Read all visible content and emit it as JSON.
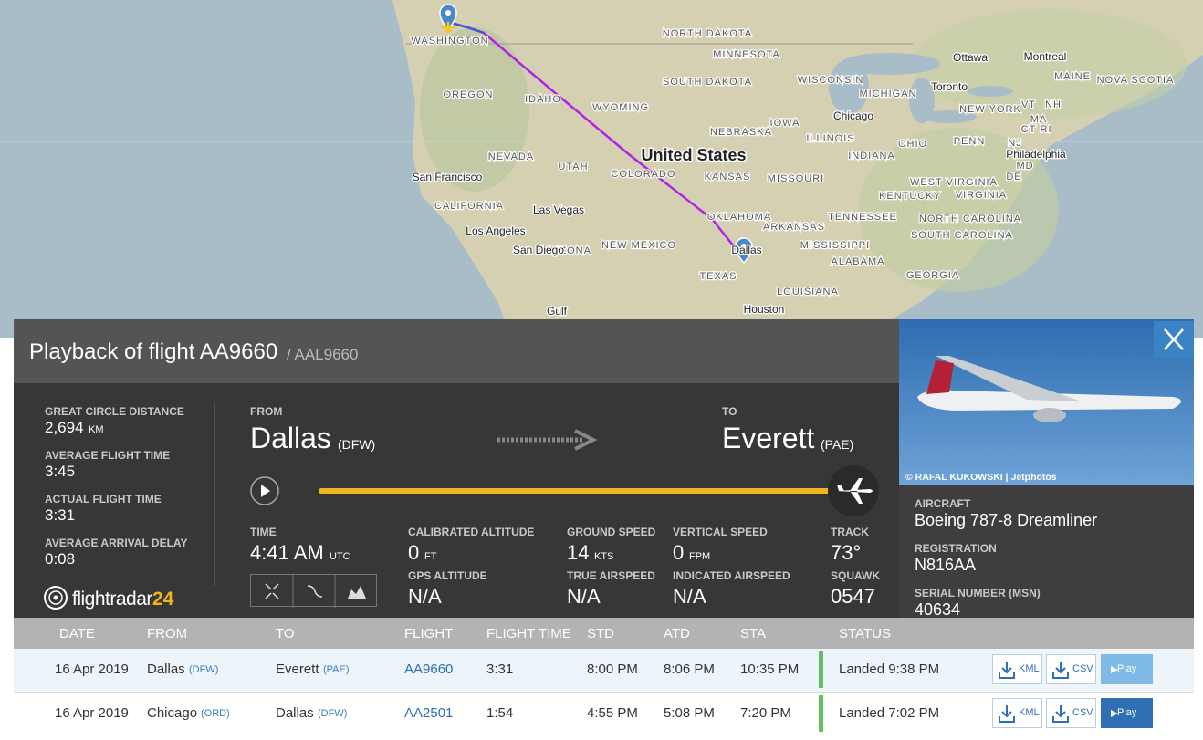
{
  "map": {
    "labels": [
      "NORTH DAKOTA",
      "MINNESOTA",
      "Ottawa",
      "Montreal",
      "WASHINGTON",
      "MAINE",
      "NOVA SCOTIA",
      "SOUTH DAKOTA",
      "WISCONSIN",
      "MICHIGAN",
      "Toronto",
      "OREGON",
      "IDAHO",
      "WYOMING",
      "NEW YORK",
      "VT",
      "NH",
      "MA",
      "CT",
      "RI",
      "IOWA",
      "Chicago",
      "NEBRASKA",
      "ILLINOIS",
      "OHIO",
      "PENN",
      "NJ",
      "United States",
      "NEVADA",
      "UTAH",
      "COLORADO",
      "KANSAS",
      "MISSOURI",
      "INDIANA",
      "Philadelphia",
      "MD",
      "DE",
      "WEST VIRGINIA",
      "VIRGINIA",
      "KENTUCKY",
      "San Francisco",
      "CALIFORNIA",
      "Las Vegas",
      "OKLAHOMA",
      "TENNESSEE",
      "NORTH CAROLINA",
      "ARKANSAS",
      "Los Angeles",
      "ARIZONA",
      "NEW MEXICO",
      "MISSISSIPPI",
      "SOUTH CAROLINA",
      "San Diego",
      "Dallas",
      "ALABAMA",
      "GEORGIA",
      "TEXAS",
      "LOUISIANA",
      "Houston",
      "Gulf"
    ]
  },
  "panel": {
    "title": "Playback of flight AA9660",
    "callsign": "/ AAL9660",
    "stats": [
      {
        "label": "GREAT CIRCLE DISTANCE",
        "value": "2,694",
        "unit": "KM"
      },
      {
        "label": "AVERAGE FLIGHT TIME",
        "value": "3:45"
      },
      {
        "label": "ACTUAL FLIGHT TIME",
        "value": "3:31"
      },
      {
        "label": "AVERAGE ARRIVAL DELAY",
        "value": "0:08"
      }
    ],
    "from": {
      "label": "FROM",
      "city": "Dallas",
      "code": "(DFW)"
    },
    "to": {
      "label": "TO",
      "city": "Everett",
      "code": "(PAE)"
    },
    "readouts": [
      {
        "label": "TIME",
        "value": "4:41 AM",
        "unit": "UTC"
      },
      {
        "label": "CALIBRATED ALTITUDE",
        "value": "0",
        "unit": "FT"
      },
      {
        "label": "GROUND SPEED",
        "value": "14",
        "unit": "KTS"
      },
      {
        "label": "VERTICAL SPEED",
        "value": "0",
        "unit": "FPM"
      },
      {
        "label": "TRACK",
        "value": "73°"
      },
      {
        "label": "GPS ALTITUDE",
        "value": "N/A"
      },
      {
        "label": "TRUE AIRSPEED",
        "value": "N/A"
      },
      {
        "label": "INDICATED AIRSPEED",
        "value": "N/A"
      },
      {
        "label": "SQUAWK",
        "value": "0547"
      }
    ],
    "logo": {
      "name": "flightradar",
      "suffix": "24"
    },
    "photo_credit": "© RAFAL KUKOWSKI | Jetphotos",
    "aircraft": [
      {
        "label": "AIRCRAFT",
        "value": "Boeing 787-8 Dreamliner"
      },
      {
        "label": "REGISTRATION",
        "value": "N816AA"
      },
      {
        "label": "SERIAL NUMBER (MSN)",
        "value": "40634"
      }
    ]
  },
  "table": {
    "columns": [
      "DATE",
      "FROM",
      "TO",
      "FLIGHT",
      "FLIGHT TIME",
      "STD",
      "ATD",
      "STA",
      "STATUS"
    ],
    "rows": [
      {
        "date": "16 Apr 2019",
        "from": "Dallas",
        "from_code": "(DFW)",
        "to": "Everett",
        "to_code": "(PAE)",
        "flight": "AA9660",
        "flight_time": "3:31",
        "std": "8:00 PM",
        "atd": "8:06 PM",
        "sta": "10:35 PM",
        "status": "Landed 9:38 PM"
      },
      {
        "date": "16 Apr 2019",
        "from": "Chicago",
        "from_code": "(ORD)",
        "to": "Dallas",
        "to_code": "(DFW)",
        "flight": "AA2501",
        "flight_time": "1:54",
        "std": "4:55 PM",
        "atd": "5:08 PM",
        "sta": "7:20 PM",
        "status": "Landed 7:02 PM"
      }
    ],
    "buttons": [
      "KML",
      "CSV",
      "Play"
    ]
  }
}
